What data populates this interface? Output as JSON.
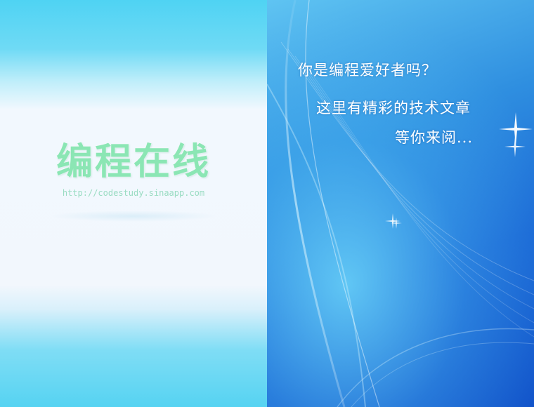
{
  "brand": {
    "title": "编程在线",
    "url": "http://codestudy.sinaapp.com"
  },
  "taglines": [
    "你是编程爱好者吗？",
    "这里有精彩的技术文章",
    "等你来阅..."
  ],
  "colors": {
    "brand_green": "#8be6b4",
    "url_green": "#99dcc2",
    "sky_top": "#4fd3f3",
    "panel_white": "#f2f8fe",
    "deep_blue": "#0f4fc8"
  }
}
